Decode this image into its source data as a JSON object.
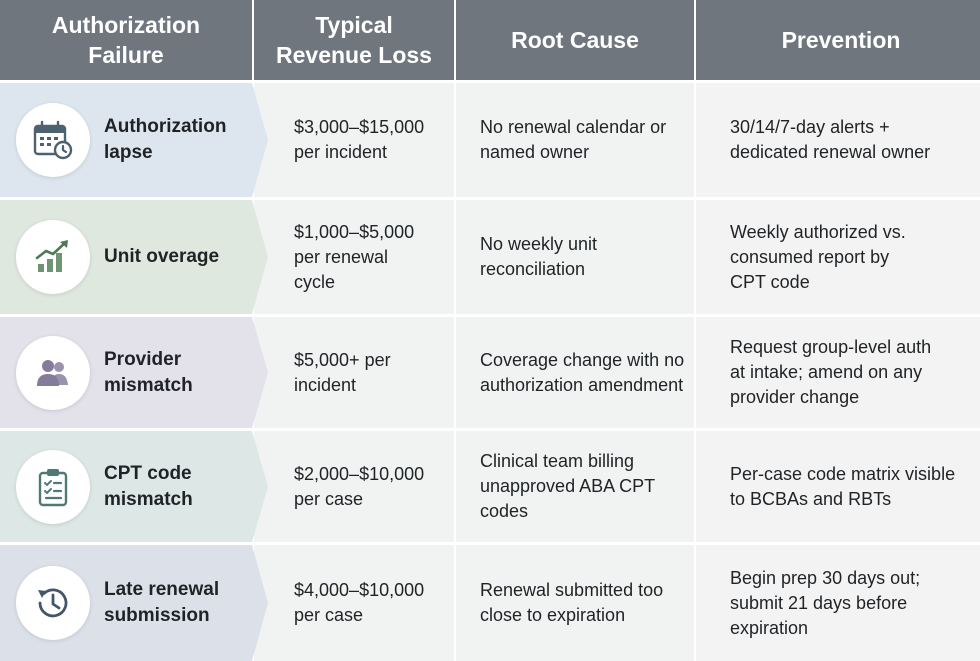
{
  "colors": {
    "header_bg": "#6f767e",
    "cell_bg": "#f1f2f2",
    "row_tints": [
      "#dde6ee",
      "#dfe8df",
      "#e3e1ea",
      "#dde8e6",
      "#dce1e9"
    ],
    "icon_color": "#4d6270",
    "accent_green": "#4f7a55"
  },
  "header": {
    "col1": "Authorization\nFailure",
    "col2": "Typical\nRevenue Loss",
    "col3": "Root Cause",
    "col4": "Prevention"
  },
  "rows": [
    {
      "icon": "calendar-clock-icon",
      "failure": "Authorization\nlapse",
      "loss": "$3,000–$15,000\n per incident",
      "cause": "No renewal calendar or\nnamed owner",
      "prevention": "30/14/7-day alerts +\ndedicated renewal owner"
    },
    {
      "icon": "growth-chart-icon",
      "failure": "Unit overage",
      "loss": "$1,000–$5,000\nper renewal\ncycle",
      "cause": "No weekly unit\nreconciliation",
      "prevention": "Weekly authorized vs.\nconsumed report by\nCPT code"
    },
    {
      "icon": "people-icon",
      "failure": "Provider\nmismatch",
      "loss": "$5,000+ per\nincident",
      "cause": "Coverage change with no\nauthorization amendment",
      "prevention": "Request group-level auth\nat intake; amend on any\nprovider change"
    },
    {
      "icon": "clipboard-checklist-icon",
      "failure": "CPT code\nmismatch",
      "loss": "$2,000–$10,000\nper case",
      "cause": "Clinical team billing\nunapproved ABA CPT\ncodes",
      "prevention": "Per-case code matrix visible\nto BCBAs and RBTs"
    },
    {
      "icon": "history-clock-icon",
      "failure": "Late renewal\nsubmission",
      "loss": "$4,000–$10,000\nper case",
      "cause": "Renewal submitted too\nclose to expiration",
      "prevention": "Begin prep 30 days out;\nsubmit 21 days before\nexpiration"
    }
  ]
}
